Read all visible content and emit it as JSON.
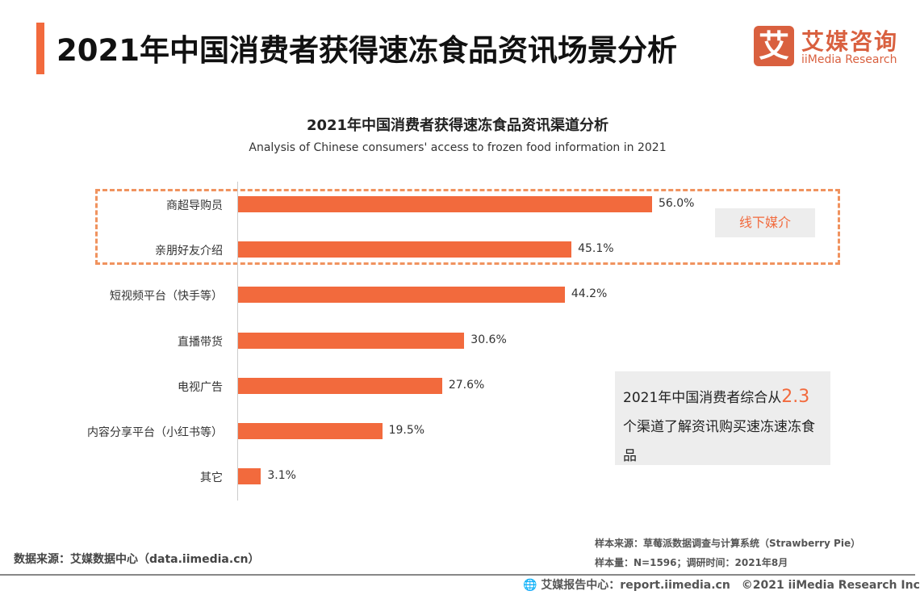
{
  "header": {
    "title": "2021年中国消费者获得速冻食品资讯场景分析",
    "logo_mark": "艾",
    "logo_cn": "艾媒咨询",
    "logo_en": "iiMedia Research"
  },
  "chart_data": {
    "type": "bar",
    "orientation": "horizontal",
    "title": "2021年中国消费者获得速冻食品资讯渠道分析",
    "subtitle": "Analysis of Chinese consumers' access to frozen food information in 2021",
    "categories": [
      "商超导购员",
      "亲朋好友介绍",
      "短视频平台（快手等）",
      "直播带货",
      "电视广告",
      "内容分享平台（小红书等）",
      "其它"
    ],
    "values": [
      56.0,
      45.1,
      44.2,
      30.6,
      27.6,
      19.5,
      3.1
    ],
    "labels": [
      "56.0%",
      "45.1%",
      "44.2%",
      "30.6%",
      "27.6%",
      "19.5%",
      "3.1%"
    ],
    "unit": "%",
    "bar_color": "#f26a3d",
    "grid": false,
    "group_annotation": {
      "label": "线下媒介",
      "categories": [
        "商超导购员",
        "亲朋好友介绍"
      ]
    }
  },
  "note": {
    "before": "2021年中国消费者综合从",
    "highlight": "2.3",
    "after": "个渠道了解资讯购买速冻速冻食品"
  },
  "footer": {
    "source": "数据来源：艾媒数据中心（data.iimedia.cn）",
    "sample_source": "样本来源：草莓派数据调查与计算系统（Strawberry Pie）",
    "sample_size": "样本量：N=1596；调研时间：2021年8月",
    "report": "艾媒报告中心：report.iimedia.cn　©2021  iiMedia Research  Inc"
  }
}
